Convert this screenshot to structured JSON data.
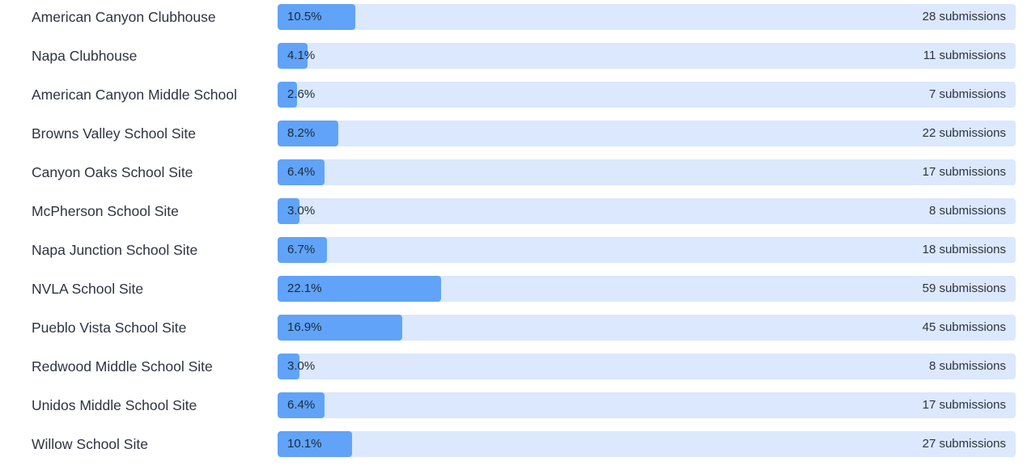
{
  "chart_data": {
    "type": "bar",
    "orientation": "horizontal",
    "title": "",
    "xlabel": "",
    "ylabel": "",
    "xlim": [
      0,
      100
    ],
    "categories": [
      "American Canyon Clubhouse",
      "Napa Clubhouse",
      "American Canyon Middle School",
      "Browns Valley School Site",
      "Canyon Oaks School Site",
      "McPherson School Site",
      "Napa Junction School Site",
      "NVLA School Site",
      "Pueblo Vista School Site",
      "Redwood Middle School Site",
      "Unidos Middle School Site",
      "Willow School Site"
    ],
    "series": [
      {
        "name": "Percent",
        "values": [
          10.5,
          4.1,
          2.6,
          8.2,
          6.4,
          3.0,
          6.7,
          22.1,
          16.9,
          3.0,
          6.4,
          10.1
        ]
      },
      {
        "name": "Submissions",
        "values": [
          28,
          11,
          7,
          22,
          17,
          8,
          18,
          59,
          45,
          8,
          17,
          27
        ]
      }
    ],
    "colors": {
      "fill": "#60a3f8",
      "track": "#dbe8fd"
    }
  },
  "rows": [
    {
      "label": "American Canyon Clubhouse",
      "pct": 10.5,
      "pct_label": "10.5%",
      "count_label": "28 submissions"
    },
    {
      "label": "Napa Clubhouse",
      "pct": 4.1,
      "pct_label": "4.1%",
      "count_label": "11 submissions"
    },
    {
      "label": "American Canyon Middle School",
      "pct": 2.6,
      "pct_label": "2.6%",
      "count_label": "7 submissions"
    },
    {
      "label": "Browns Valley School Site",
      "pct": 8.2,
      "pct_label": "8.2%",
      "count_label": "22 submissions"
    },
    {
      "label": "Canyon Oaks School Site",
      "pct": 6.4,
      "pct_label": "6.4%",
      "count_label": "17 submissions"
    },
    {
      "label": "McPherson School Site",
      "pct": 3.0,
      "pct_label": "3.0%",
      "count_label": "8 submissions"
    },
    {
      "label": "Napa Junction School Site",
      "pct": 6.7,
      "pct_label": "6.7%",
      "count_label": "18 submissions"
    },
    {
      "label": "NVLA School Site",
      "pct": 22.1,
      "pct_label": "22.1%",
      "count_label": "59 submissions"
    },
    {
      "label": "Pueblo Vista School Site",
      "pct": 16.9,
      "pct_label": "16.9%",
      "count_label": "45 submissions"
    },
    {
      "label": "Redwood Middle School Site",
      "pct": 3.0,
      "pct_label": "3.0%",
      "count_label": "8 submissions"
    },
    {
      "label": "Unidos Middle School Site",
      "pct": 6.4,
      "pct_label": "6.4%",
      "count_label": "17 submissions"
    },
    {
      "label": "Willow School Site",
      "pct": 10.1,
      "pct_label": "10.1%",
      "count_label": "27 submissions"
    }
  ]
}
